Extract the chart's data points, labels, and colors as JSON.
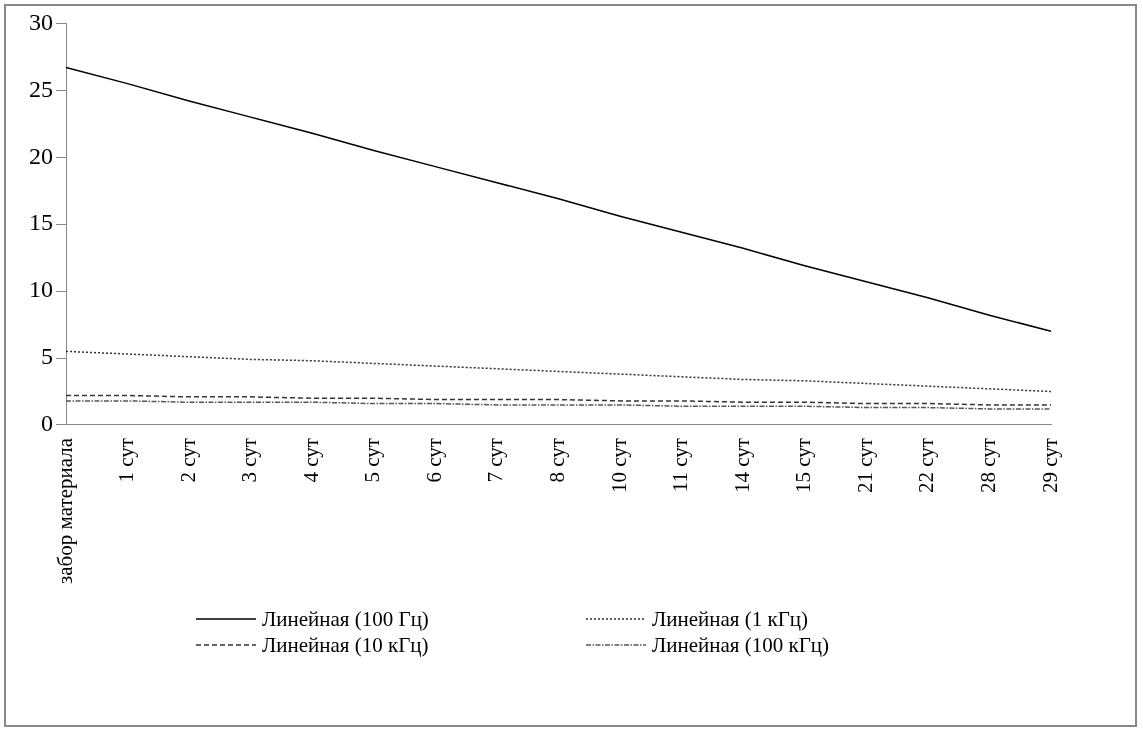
{
  "chart_data": {
    "type": "line",
    "categories": [
      "забор материала",
      "1 сут",
      "2 сут",
      "3 сут",
      "4 сут",
      "5 сут",
      "6 сут",
      "7 сут",
      "8 сут",
      "10 сут",
      "11 сут",
      "14 сут",
      "15 сут",
      "21 сут",
      "22 сут",
      "28 сут",
      "29 сут"
    ],
    "series": [
      {
        "name": "Линейная (100 Гц)",
        "color": "#000000",
        "line_style": "solid",
        "values": [
          26.7,
          25.5,
          24.2,
          23.0,
          21.8,
          20.5,
          19.3,
          18.1,
          16.9,
          15.6,
          14.4,
          13.2,
          11.9,
          10.7,
          9.5,
          8.2,
          7.0
        ]
      },
      {
        "name": "Линейная (1 кГц)",
        "color": "#333333",
        "line_style": "dotted",
        "values": [
          5.5,
          5.3,
          5.1,
          4.9,
          4.8,
          4.6,
          4.4,
          4.2,
          4.0,
          3.8,
          3.6,
          3.4,
          3.3,
          3.1,
          2.9,
          2.7,
          2.5
        ]
      },
      {
        "name": "Линейная (10 кГц)",
        "color": "#333333",
        "line_style": "dashed",
        "values": [
          2.2,
          2.2,
          2.1,
          2.1,
          2.0,
          2.0,
          1.9,
          1.9,
          1.9,
          1.8,
          1.8,
          1.7,
          1.7,
          1.6,
          1.6,
          1.5,
          1.5
        ]
      },
      {
        "name": "Линейная (100 кГц)",
        "color": "#555555",
        "line_style": "dashdot",
        "values": [
          1.8,
          1.8,
          1.7,
          1.7,
          1.7,
          1.6,
          1.6,
          1.5,
          1.5,
          1.5,
          1.4,
          1.4,
          1.4,
          1.3,
          1.3,
          1.2,
          1.2
        ]
      }
    ],
    "ylim": [
      0,
      30
    ],
    "yticks": [
      0,
      5,
      10,
      15,
      20,
      25,
      30
    ],
    "grid": false,
    "legend": "bottom",
    "marker": "none"
  }
}
